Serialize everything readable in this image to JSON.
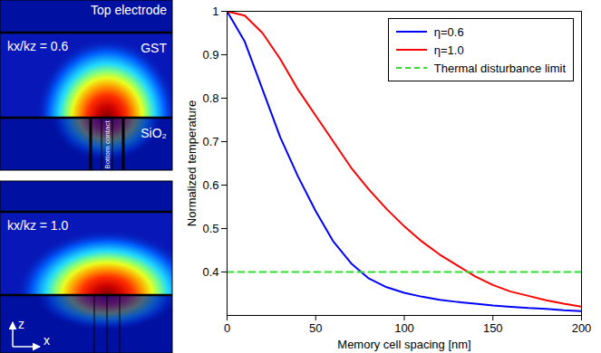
{
  "panels": [
    {
      "top_label": "Top electrode",
      "ratio_label": "kx/kz = 0.6",
      "layer_labels": [
        "GST",
        "SiO₂"
      ],
      "contact_label": "Bottom contact"
    },
    {
      "ratio_label": "kx/kz = 1.0",
      "axis_labels": [
        "z",
        "x"
      ]
    }
  ],
  "chart_data": {
    "type": "line",
    "x": [
      0,
      10,
      20,
      30,
      40,
      50,
      60,
      70,
      80,
      90,
      100,
      110,
      120,
      130,
      140,
      150,
      160,
      170,
      180,
      190,
      200
    ],
    "series": [
      {
        "name": "η=0.6",
        "color": "#0000ff",
        "line_style": "solid",
        "values": [
          1,
          0.93,
          0.82,
          0.71,
          0.62,
          0.54,
          0.47,
          0.42,
          0.385,
          0.365,
          0.352,
          0.343,
          0.336,
          0.331,
          0.327,
          0.323,
          0.32,
          0.317,
          0.315,
          0.312,
          0.31
        ]
      },
      {
        "name": "η=1.0",
        "color": "#ff0000",
        "line_style": "solid",
        "values": [
          1,
          0.99,
          0.95,
          0.89,
          0.82,
          0.76,
          0.7,
          0.64,
          0.59,
          0.545,
          0.505,
          0.47,
          0.44,
          0.415,
          0.39,
          0.37,
          0.355,
          0.345,
          0.335,
          0.327,
          0.32
        ]
      },
      {
        "name": "Thermal disturbance limit",
        "color": "#33dd33",
        "line_style": "dashed",
        "values": [
          0.4,
          0.4,
          0.4,
          0.4,
          0.4,
          0.4,
          0.4,
          0.4,
          0.4,
          0.4,
          0.4,
          0.4,
          0.4,
          0.4,
          0.4,
          0.4,
          0.4,
          0.4,
          0.4,
          0.4,
          0.4
        ]
      }
    ],
    "x_label": "Memory cell spacing [nm]",
    "y_label": "Normalized temperature",
    "xlim": [
      0,
      200
    ],
    "xticks": [
      0,
      50,
      100,
      150,
      200
    ],
    "ylim": [
      0.3,
      1
    ],
    "yticks": [
      0.4,
      0.5,
      0.6,
      0.7,
      0.8,
      0.9,
      1
    ],
    "grid": false,
    "legend": "northeast"
  }
}
